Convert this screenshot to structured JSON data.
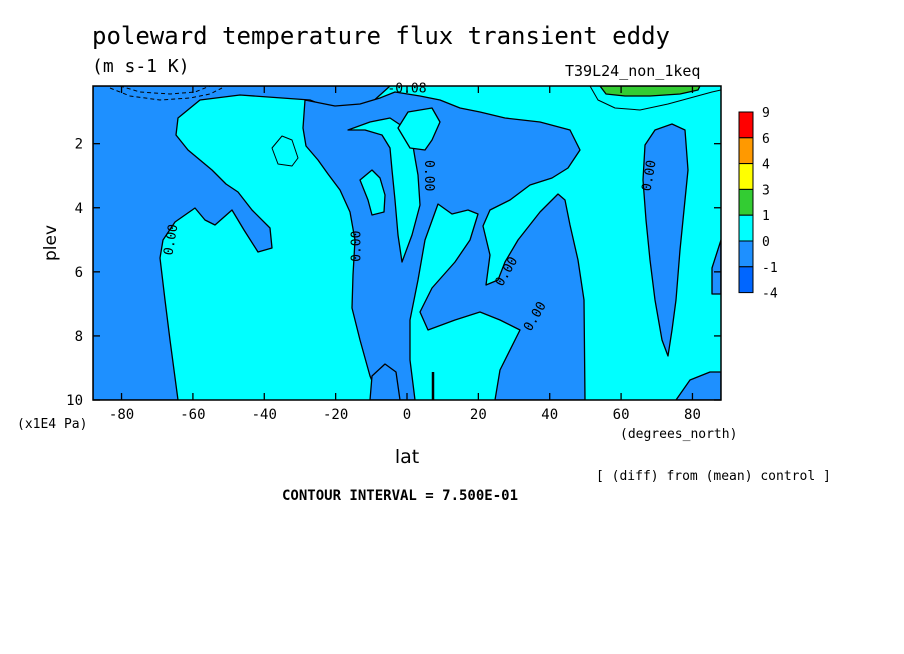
{
  "chart_data": {
    "type": "contour",
    "title": "poleward temperature flux transient eddy",
    "units": "(m s-1 K)",
    "run_label": "T39L24_non_1keq",
    "xlabel": "lat",
    "x_units": "(degrees_north)",
    "ylabel": "plev",
    "y_units": "(x1E4 Pa)",
    "xlim": [
      -88,
      88
    ],
    "ylim": [
      10,
      0.2
    ],
    "x_ticks": [
      -80,
      -60,
      -40,
      -20,
      0,
      20,
      40,
      60,
      80
    ],
    "x_tick_labels": [
      "-80",
      "-60",
      "-40",
      "-20",
      "0",
      "20",
      "40",
      "60",
      "80"
    ],
    "y_ticks": [
      2,
      4,
      6,
      8,
      10
    ],
    "y_tick_labels": [
      "2",
      "4",
      "6",
      "8",
      "10"
    ],
    "contour_interval_label": "CONTOUR INTERVAL = 7.500E-01",
    "note": "[ (diff) from (mean) control ]",
    "contour_labels": [
      {
        "text": "0.00",
        "lat": -66,
        "plev": 5.0,
        "angle": -80
      },
      {
        "text": "0.00",
        "lat": -14,
        "plev": 5.2,
        "angle": -90
      },
      {
        "text": "0.00",
        "lat": 6,
        "plev": 3.0,
        "angle": 90
      },
      {
        "text": "0.00",
        "lat": 28,
        "plev": 6.0,
        "angle": -60
      },
      {
        "text": "0.00",
        "lat": 36,
        "plev": 7.4,
        "angle": -60
      },
      {
        "text": "0.00",
        "lat": 68,
        "plev": 3.0,
        "angle": -80
      },
      {
        "text": "-0.08",
        "lat": 0,
        "plev": 0.3,
        "angle": 0
      }
    ],
    "colorbar": {
      "levels": [
        "9",
        "6",
        "4",
        "3",
        "1",
        "0",
        "-1",
        "-4"
      ],
      "colors": [
        "#ff0000",
        "#ff9900",
        "#ffff00",
        "#33cc33",
        "#00ffff",
        "#1e90ff",
        "#0066ff"
      ]
    },
    "colors": {
      "negative_fill": "#1e90ff",
      "zero_plus_fill": "#00ffff",
      "positive_fill": "#33cc33",
      "contour_line": "#000000"
    }
  }
}
